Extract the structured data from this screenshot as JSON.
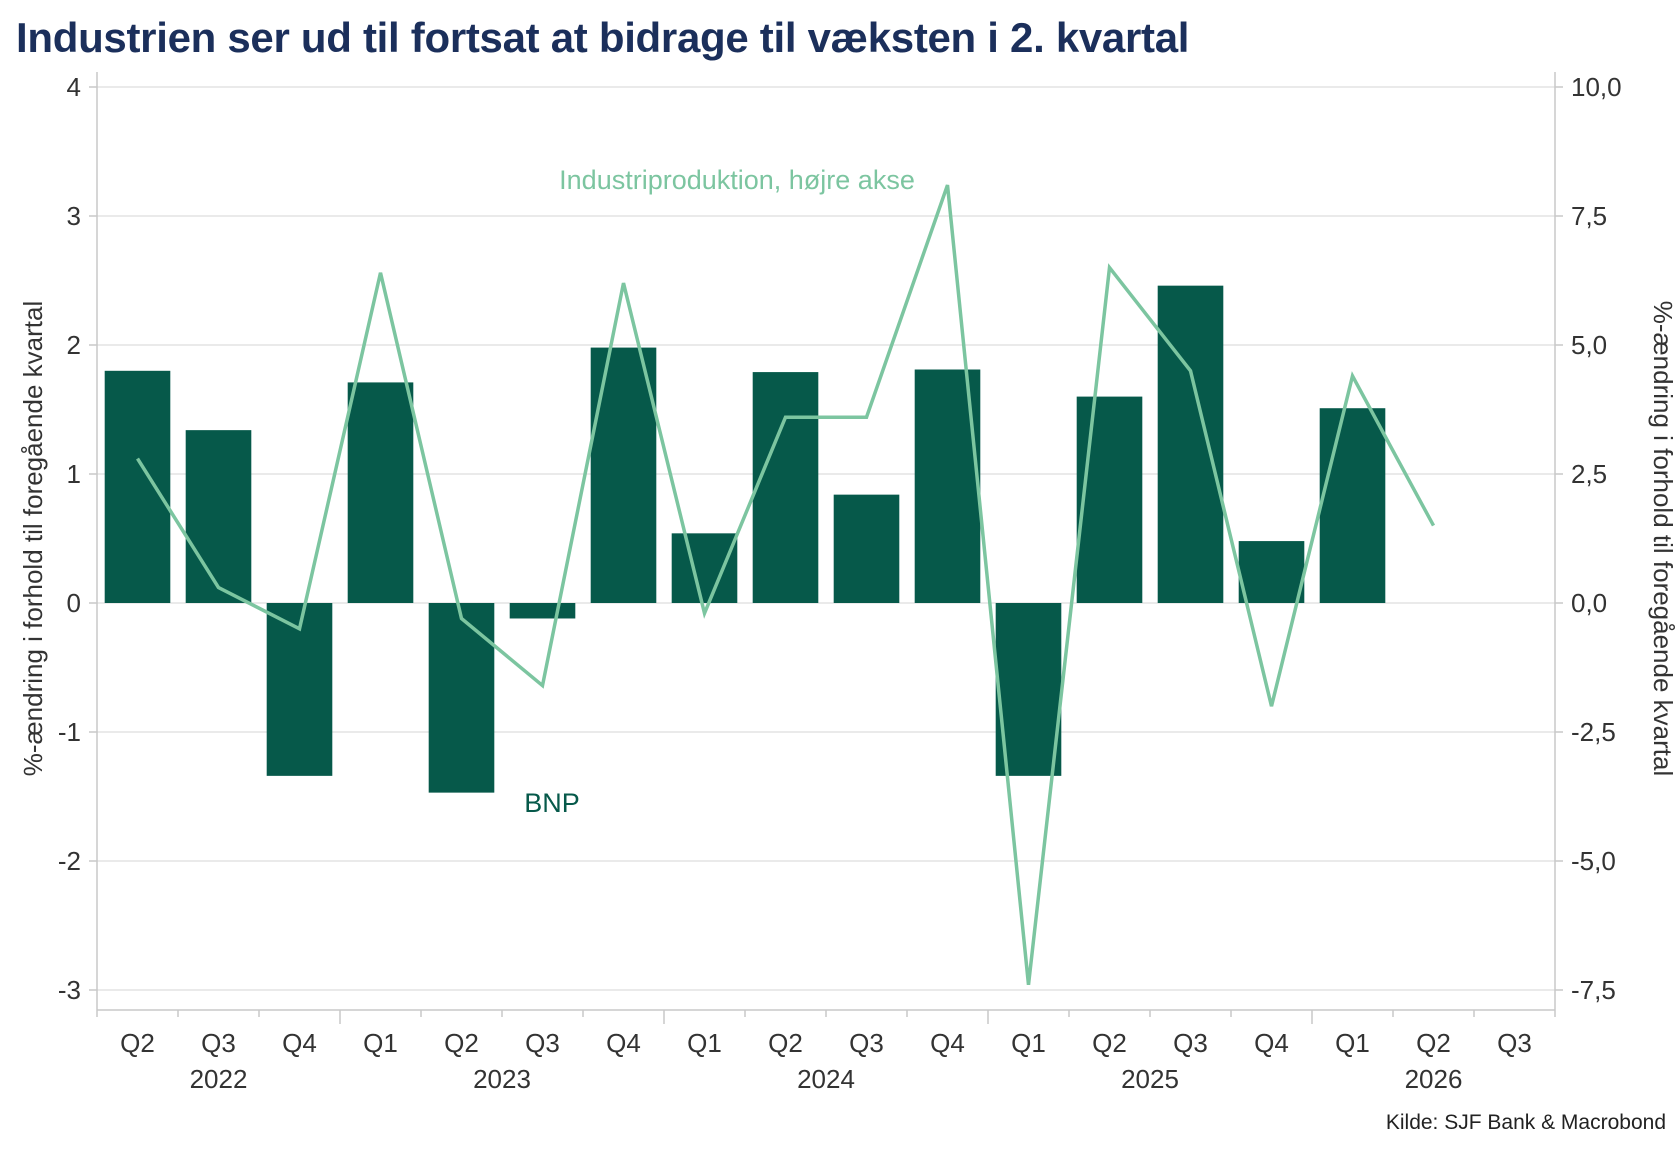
{
  "title": "Industrien ser ud til fortsat at bidrage til væksten i 2. kvartal",
  "source": "Kilde: SJF Bank & Macrobond",
  "colors": {
    "bar": "#06594a",
    "line": "#7cc5a0",
    "title": "#1b2f5b",
    "grid": "#e3e3e3",
    "axis": "#c8c8c8",
    "text": "#333333"
  },
  "chart_data": {
    "type": "bar+line",
    "title": "Industrien ser ud til fortsat at bidrage til væksten i 2. kvartal",
    "categories": [
      "Q2",
      "Q3",
      "Q4",
      "Q1",
      "Q2",
      "Q3",
      "Q4",
      "Q1",
      "Q2",
      "Q3",
      "Q4",
      "Q1",
      "Q2",
      "Q3",
      "Q4",
      "Q1",
      "Q2",
      "Q3"
    ],
    "years": [
      {
        "label": "2022",
        "start": 0,
        "end": 2
      },
      {
        "label": "2023",
        "start": 3,
        "end": 6
      },
      {
        "label": "2024",
        "start": 7,
        "end": 10
      },
      {
        "label": "2025",
        "start": 11,
        "end": 14
      },
      {
        "label": "2026",
        "start": 15,
        "end": 17
      }
    ],
    "year_ticks_before": [
      3,
      7,
      11,
      15
    ],
    "ylabel_left": "%-ændring i forhold til foregående kvartal",
    "ylabel_right": "%-ændring i forhold til foregående kvartal",
    "ylim_left": [
      -3,
      4
    ],
    "yticks_left": [
      "-3",
      "-2",
      "-1",
      "0",
      "1",
      "2",
      "3",
      "4"
    ],
    "ylim_right": [
      -7.5,
      10
    ],
    "yticks_right": [
      "-7,5",
      "-5,0",
      "-2,5",
      "0,0",
      "2,5",
      "5,0",
      "7,5",
      "10,0"
    ],
    "grid": true,
    "series": [
      {
        "name": "BNP",
        "type": "bar",
        "axis": "left",
        "values": [
          1.8,
          1.34,
          -1.34,
          1.71,
          -1.47,
          -0.12,
          1.98,
          0.54,
          1.79,
          0.84,
          1.81,
          -1.34,
          1.6,
          2.46,
          0.48,
          1.51,
          null,
          null
        ]
      },
      {
        "name": "Industriproduktion, højre akse",
        "type": "line",
        "axis": "right",
        "values": [
          2.8,
          0.3,
          -0.5,
          6.4,
          -0.3,
          -1.6,
          6.2,
          -0.2,
          3.6,
          3.6,
          8.1,
          -7.4,
          6.5,
          4.5,
          -2.0,
          4.4,
          1.5,
          null
        ]
      }
    ]
  }
}
